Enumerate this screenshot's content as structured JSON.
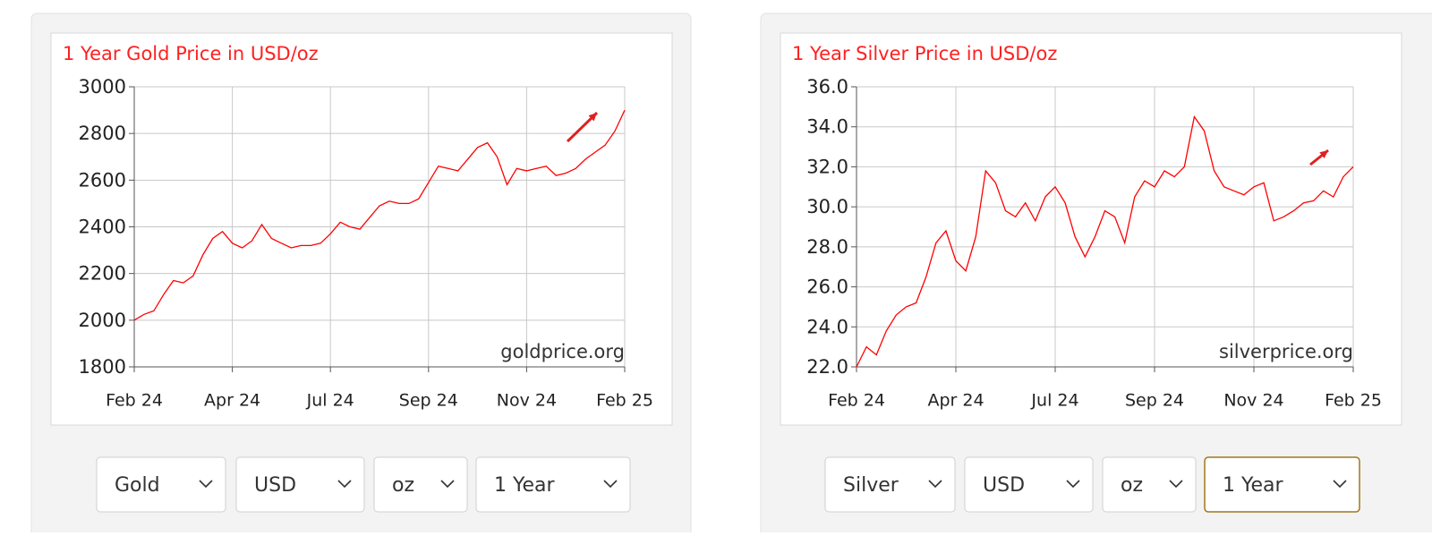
{
  "chart_data": [
    {
      "type": "line",
      "title": "1 Year Gold Price in USD/oz",
      "annotation": "goldprice.org",
      "color": "#ff0000",
      "grid": true,
      "x": [
        0,
        0.1,
        0.2,
        0.3,
        0.4,
        0.5,
        0.6,
        0.7,
        0.8,
        0.9,
        1,
        1.1,
        1.2,
        1.3,
        1.4,
        1.5,
        1.6,
        1.7,
        1.8,
        1.9,
        2,
        2.1,
        2.2,
        2.3,
        2.4,
        2.5,
        2.6,
        2.7,
        2.8,
        2.9,
        3,
        3.1,
        3.2,
        3.3,
        3.4,
        3.5,
        3.6,
        3.7,
        3.8,
        3.9,
        4,
        4.1,
        4.2,
        4.3,
        4.4,
        4.5,
        4.6,
        4.7,
        4.8,
        4.9,
        5
      ],
      "values": [
        2000,
        2025,
        2040,
        2110,
        2170,
        2160,
        2190,
        2280,
        2350,
        2380,
        2330,
        2310,
        2340,
        2410,
        2350,
        2330,
        2310,
        2320,
        2320,
        2330,
        2370,
        2420,
        2400,
        2390,
        2440,
        2490,
        2510,
        2500,
        2500,
        2520,
        2590,
        2660,
        2650,
        2640,
        2690,
        2740,
        2760,
        2700,
        2580,
        2650,
        2640,
        2650,
        2660,
        2620,
        2630,
        2650,
        2690,
        2720,
        2750,
        2810,
        2900
      ],
      "xlim": [
        0,
        5
      ],
      "xticks": [
        {
          "value": 0,
          "label": "Feb 24"
        },
        {
          "value": 1,
          "label": "Apr 24"
        },
        {
          "value": 2,
          "label": "Jul 24"
        },
        {
          "value": 3,
          "label": "Sep 24"
        },
        {
          "value": 4,
          "label": "Nov 24"
        },
        {
          "value": 5,
          "label": "Feb 25"
        }
      ],
      "ylim": [
        1800,
        3000
      ],
      "yticks": [
        1800,
        2000,
        2200,
        2400,
        2600,
        2800,
        3000
      ]
    },
    {
      "type": "line",
      "title": "1 Year Silver Price in USD/oz",
      "annotation": "silverprice.org",
      "color": "#ff0000",
      "grid": true,
      "x": [
        0,
        0.1,
        0.2,
        0.3,
        0.4,
        0.5,
        0.6,
        0.7,
        0.8,
        0.9,
        1,
        1.1,
        1.2,
        1.3,
        1.4,
        1.5,
        1.6,
        1.7,
        1.8,
        1.9,
        2,
        2.1,
        2.2,
        2.3,
        2.4,
        2.5,
        2.6,
        2.7,
        2.8,
        2.9,
        3,
        3.1,
        3.2,
        3.3,
        3.4,
        3.5,
        3.6,
        3.7,
        3.8,
        3.9,
        4,
        4.1,
        4.2,
        4.3,
        4.4,
        4.5,
        4.6,
        4.7,
        4.8,
        4.9,
        5
      ],
      "values": [
        22.0,
        23.0,
        22.6,
        23.8,
        24.6,
        25.0,
        25.2,
        26.5,
        28.2,
        28.8,
        27.3,
        26.8,
        28.5,
        31.8,
        31.2,
        29.8,
        29.5,
        30.2,
        29.3,
        30.5,
        31.0,
        30.2,
        28.5,
        27.5,
        28.5,
        29.8,
        29.5,
        28.2,
        30.5,
        31.3,
        31.0,
        31.8,
        31.5,
        32.0,
        34.5,
        33.8,
        31.8,
        31.0,
        30.8,
        30.6,
        31.0,
        31.2,
        29.3,
        29.5,
        29.8,
        30.2,
        30.3,
        30.8,
        30.5,
        31.5,
        32.0
      ],
      "xlim": [
        0,
        5
      ],
      "xticks": [
        {
          "value": 0,
          "label": "Feb 24"
        },
        {
          "value": 1,
          "label": "Apr 24"
        },
        {
          "value": 2,
          "label": "Jul 24"
        },
        {
          "value": 3,
          "label": "Sep 24"
        },
        {
          "value": 4,
          "label": "Nov 24"
        },
        {
          "value": 5,
          "label": "Feb 25"
        }
      ],
      "ylim": [
        22,
        36
      ],
      "yticks": [
        {
          "value": 22,
          "label": "22.0"
        },
        {
          "value": 24,
          "label": "24.0"
        },
        {
          "value": 26,
          "label": "26.0"
        },
        {
          "value": 28,
          "label": "28.0"
        },
        {
          "value": 30,
          "label": "30.0"
        },
        {
          "value": 32,
          "label": "32.0"
        },
        {
          "value": 34,
          "label": "34.0"
        },
        {
          "value": 36,
          "label": "36.0"
        }
      ]
    }
  ],
  "controls": [
    {
      "options": [
        "Gold",
        "USD",
        "oz",
        "1 Year"
      ]
    },
    {
      "options": [
        "Silver",
        "USD",
        "oz",
        "1 Year"
      ]
    }
  ]
}
